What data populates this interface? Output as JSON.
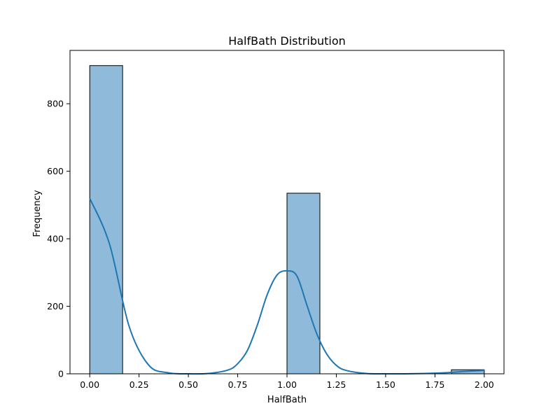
{
  "colors": {
    "bar_fill": "#8fbad9",
    "bar_edge": "#000000",
    "kde_line": "#1f77b4"
  },
  "chart_data": {
    "type": "bar",
    "title": "HalfBath Distribution",
    "xlabel": "HalfBath",
    "ylabel": "Frequency",
    "xlim": [
      -0.1,
      2.1
    ],
    "ylim": [
      0,
      958
    ],
    "grid": false,
    "legend": "none",
    "bins": [
      {
        "x0": 0.0,
        "x1": 0.1667,
        "count": 913
      },
      {
        "x0": 0.1667,
        "x1": 0.3333,
        "count": 0
      },
      {
        "x0": 0.3333,
        "x1": 0.5,
        "count": 0
      },
      {
        "x0": 0.5,
        "x1": 0.6667,
        "count": 0
      },
      {
        "x0": 0.6667,
        "x1": 0.8333,
        "count": 0
      },
      {
        "x0": 0.8333,
        "x1": 1.0,
        "count": 0
      },
      {
        "x0": 1.0,
        "x1": 1.1667,
        "count": 535
      },
      {
        "x0": 1.1667,
        "x1": 1.3333,
        "count": 0
      },
      {
        "x0": 1.3333,
        "x1": 1.5,
        "count": 0
      },
      {
        "x0": 1.5,
        "x1": 1.6667,
        "count": 0
      },
      {
        "x0": 1.6667,
        "x1": 1.8333,
        "count": 0
      },
      {
        "x0": 1.8333,
        "x1": 2.0,
        "count": 12
      }
    ],
    "kde": {
      "x": [
        0.0,
        0.1,
        0.2,
        0.3,
        0.4,
        0.5,
        0.6,
        0.7,
        0.75,
        0.8,
        0.85,
        0.9,
        0.95,
        1.0,
        1.05,
        1.1,
        1.15,
        1.2,
        1.25,
        1.3,
        1.4,
        1.5,
        1.6,
        1.7,
        1.8,
        1.9,
        2.0
      ],
      "y": [
        520,
        385,
        140,
        25,
        3,
        0,
        1,
        11,
        30,
        70,
        145,
        235,
        293,
        305,
        290,
        205,
        120,
        60,
        25,
        10,
        1,
        0,
        0,
        1,
        3,
        7,
        10
      ]
    },
    "xticks": [
      {
        "value": 0.0,
        "label": "0.00"
      },
      {
        "value": 0.25,
        "label": "0.25"
      },
      {
        "value": 0.5,
        "label": "0.50"
      },
      {
        "value": 0.75,
        "label": "0.75"
      },
      {
        "value": 1.0,
        "label": "1.00"
      },
      {
        "value": 1.25,
        "label": "1.25"
      },
      {
        "value": 1.5,
        "label": "1.50"
      },
      {
        "value": 1.75,
        "label": "1.75"
      },
      {
        "value": 2.0,
        "label": "2.00"
      }
    ],
    "yticks": [
      {
        "value": 0,
        "label": "0"
      },
      {
        "value": 200,
        "label": "200"
      },
      {
        "value": 400,
        "label": "400"
      },
      {
        "value": 600,
        "label": "600"
      },
      {
        "value": 800,
        "label": "800"
      }
    ]
  }
}
